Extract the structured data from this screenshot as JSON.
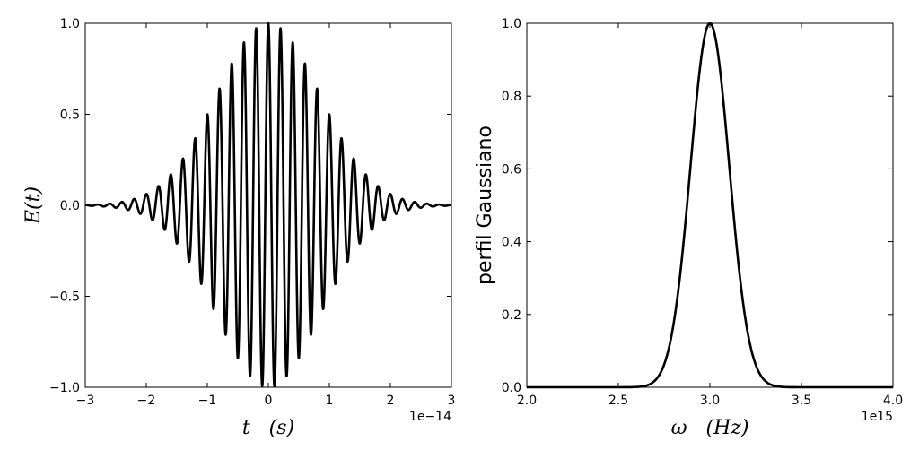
{
  "chart_data": [
    {
      "type": "line",
      "title": "",
      "xlabel": "t   (s)",
      "ylabel": "E(t)",
      "x_offset_label": "1e−14",
      "xlim": [
        -3,
        3
      ],
      "ylim": [
        -1.0,
        1.0
      ],
      "xticks": [
        -3,
        -2,
        -1,
        0,
        1,
        2,
        3
      ],
      "xtick_labels": [
        "−3",
        "−2",
        "−1",
        "0",
        "1",
        "2",
        "3"
      ],
      "yticks": [
        -1.0,
        -0.5,
        0.0,
        0.5,
        1.0
      ],
      "ytick_labels": [
        "−1.0",
        "−0.5",
        "0.0",
        "0.5",
        "1.0"
      ],
      "grid": false,
      "line_color": "#000000",
      "function": "exp(-(t/1.2)^2) * cos(2*pi*t/0.2) with t in units of 1e-14 s",
      "series": [
        {
          "x": [
            -3.0,
            -2.5,
            -2.0,
            -1.5,
            -1.0,
            -0.5,
            0.0,
            0.5,
            1.0,
            1.5,
            2.0,
            2.5,
            3.0
          ],
          "envelope": [
            0.002,
            0.013,
            0.062,
            0.21,
            0.5,
            0.84,
            1.0,
            0.84,
            0.5,
            0.21,
            0.062,
            0.013,
            0.002
          ]
        }
      ]
    },
    {
      "type": "line",
      "title": "",
      "xlabel": "ω   (Hz)",
      "ylabel": "perfil Gaussiano",
      "x_offset_label": "1e15",
      "xlim": [
        2.0,
        4.0
      ],
      "ylim": [
        0.0,
        1.0
      ],
      "xticks": [
        2.0,
        2.5,
        3.0,
        3.5,
        4.0
      ],
      "xtick_labels": [
        "2.0",
        "2.5",
        "3.0",
        "3.5",
        "4.0"
      ],
      "yticks": [
        0.0,
        0.2,
        0.4,
        0.6,
        0.8,
        1.0
      ],
      "ytick_labels": [
        "0.0",
        "0.2",
        "0.4",
        "0.6",
        "0.8",
        "1.0"
      ],
      "grid": false,
      "line_color": "#000000",
      "series": [
        {
          "x": [
            2.0,
            2.5,
            2.7,
            2.8,
            2.9,
            3.0,
            3.1,
            3.2,
            3.3,
            3.5,
            4.0
          ],
          "y": [
            0.0,
            0.0,
            0.017,
            0.17,
            0.64,
            1.0,
            0.64,
            0.17,
            0.017,
            0.0,
            0.0
          ]
        }
      ]
    }
  ]
}
